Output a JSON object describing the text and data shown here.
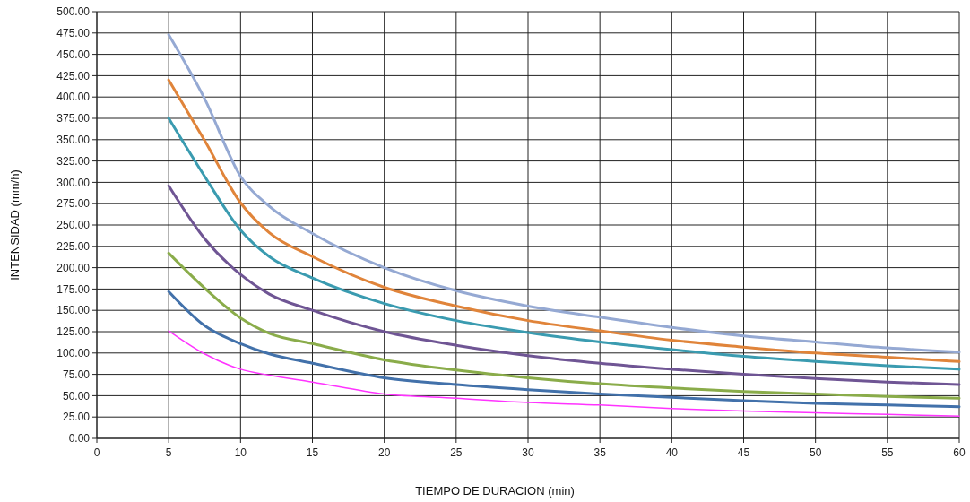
{
  "chart_data": {
    "type": "line",
    "xlabel": "TIEMPO DE DURACION (min)",
    "ylabel": "INTENSIDAD (mm/h)",
    "x": [
      5,
      7.5,
      10,
      12,
      15,
      20,
      25,
      30,
      35,
      40,
      45,
      50,
      55,
      60
    ],
    "series": [
      {
        "color": "#95a9d3",
        "values": [
          473,
          398,
          307,
          272,
          240,
          200,
          173,
          155,
          142,
          130,
          120,
          113,
          106,
          101
        ]
      },
      {
        "color": "#e0843a",
        "values": [
          420,
          349,
          276,
          241,
          213,
          177,
          155,
          138,
          126,
          115,
          107,
          100,
          95,
          90
        ]
      },
      {
        "color": "#3a9bb0",
        "values": [
          375,
          307,
          244,
          213,
          188,
          158,
          138,
          124,
          113,
          104,
          96,
          90,
          85,
          81
        ]
      },
      {
        "color": "#6f5594",
        "values": [
          296,
          234,
          192,
          169,
          150,
          125,
          109,
          97,
          88,
          81,
          75,
          70,
          66,
          63
        ]
      },
      {
        "color": "#8aac4a",
        "values": [
          217,
          176,
          141,
          123,
          111,
          92,
          80,
          71,
          64,
          59,
          55,
          52,
          49,
          47
        ]
      },
      {
        "color": "#4271aa",
        "values": [
          172,
          132,
          111,
          99,
          88,
          71,
          63,
          57,
          52,
          48,
          44,
          41,
          39,
          37
        ]
      },
      {
        "color": "#ff33ff",
        "values": [
          126,
          99,
          81,
          74,
          66,
          52,
          47,
          42,
          39,
          35,
          32,
          30,
          28,
          26
        ]
      }
    ],
    "xlim": [
      0,
      60
    ],
    "xticks": [
      0,
      5,
      10,
      15,
      20,
      25,
      30,
      35,
      40,
      45,
      50,
      55,
      60
    ],
    "ylim": [
      0,
      500
    ],
    "yticks": [
      {
        "value": 0,
        "label": "0.00"
      },
      {
        "value": 25,
        "label": "25.00"
      },
      {
        "value": 50,
        "label": "50.00"
      },
      {
        "value": 75,
        "label": "75.00"
      },
      {
        "value": 100,
        "label": "100.00"
      },
      {
        "value": 125,
        "label": "125.00"
      },
      {
        "value": 150,
        "label": "150.00"
      },
      {
        "value": 175,
        "label": "175.00"
      },
      {
        "value": 200,
        "label": "200.00"
      },
      {
        "value": 225,
        "label": "225.00"
      },
      {
        "value": 250,
        "label": "250.00"
      },
      {
        "value": 275,
        "label": "275.00"
      },
      {
        "value": 300,
        "label": "300.00"
      },
      {
        "value": 325,
        "label": "325.00"
      },
      {
        "value": 350,
        "label": "350.00"
      },
      {
        "value": 375,
        "label": "375.00"
      },
      {
        "value": 400,
        "label": "400.00"
      },
      {
        "value": 425,
        "label": "425.00"
      },
      {
        "value": 450,
        "label": "450.00"
      },
      {
        "value": 475,
        "label": "475.00"
      },
      {
        "value": 500,
        "label": "500.00"
      }
    ],
    "grid": true,
    "marker": "none",
    "line_style": "solid"
  }
}
